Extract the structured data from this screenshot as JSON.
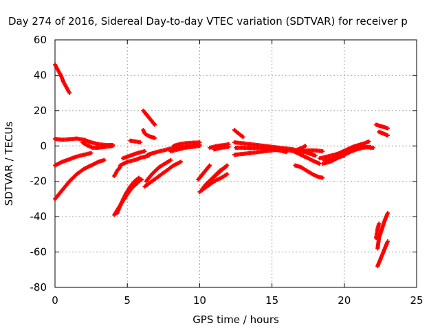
{
  "chart_data": {
    "type": "scatter",
    "title": "Day 274 of 2016, Sidereal Day-to-day VTEC variation (SDTVAR) for receiver p",
    "xlabel": "GPS time / hours",
    "ylabel": "SDTVAR / TECUs",
    "xlim": [
      0,
      25
    ],
    "ylim": [
      -80,
      60
    ],
    "xticks": [
      "0",
      "5",
      "10",
      "15",
      "20",
      "25"
    ],
    "yticks": [
      "-80",
      "-60",
      "-40",
      "-20",
      "0",
      "20",
      "40",
      "60"
    ],
    "grid": true,
    "marker": "+",
    "color": "#ff0000",
    "series": [
      {
        "points": [
          [
            0.0,
            46
          ],
          [
            0.2,
            43
          ],
          [
            0.4,
            40
          ],
          [
            0.6,
            36
          ],
          [
            0.8,
            33
          ],
          [
            1.0,
            30
          ]
        ]
      },
      {
        "points": [
          [
            0.0,
            4
          ],
          [
            0.5,
            3.5
          ],
          [
            1.0,
            3.8
          ],
          [
            1.5,
            4.2
          ],
          [
            2.0,
            3.5
          ],
          [
            2.5,
            2
          ],
          [
            3.0,
            1
          ],
          [
            3.5,
            0.5
          ],
          [
            4.0,
            0.5
          ]
        ]
      },
      {
        "points": [
          [
            0.0,
            -11
          ],
          [
            0.5,
            -9
          ],
          [
            1.0,
            -7.5
          ],
          [
            1.5,
            -6
          ],
          [
            2.0,
            -5
          ],
          [
            2.5,
            -4
          ]
        ]
      },
      {
        "points": [
          [
            0.0,
            -30
          ],
          [
            0.5,
            -25
          ],
          [
            1.0,
            -20
          ],
          [
            1.5,
            -16
          ],
          [
            2.0,
            -13
          ],
          [
            2.5,
            -11
          ],
          [
            3.0,
            -9
          ],
          [
            3.4,
            -8
          ]
        ]
      },
      {
        "points": [
          [
            1.9,
            2
          ],
          [
            2.2,
            0.5
          ],
          [
            2.6,
            -1
          ],
          [
            3.0,
            -1
          ],
          [
            3.5,
            -0.5
          ],
          [
            4.0,
            0
          ]
        ]
      },
      {
        "points": [
          [
            4.1,
            -39
          ],
          [
            4.4,
            -35
          ],
          [
            4.7,
            -31
          ],
          [
            5.0,
            -27
          ],
          [
            5.3,
            -24
          ],
          [
            5.6,
            -21
          ],
          [
            6.0,
            -19
          ]
        ]
      },
      {
        "points": [
          [
            4.3,
            -38
          ],
          [
            4.6,
            -32
          ],
          [
            4.9,
            -27
          ],
          [
            5.2,
            -23
          ],
          [
            5.5,
            -20
          ],
          [
            5.8,
            -18
          ]
        ]
      },
      {
        "points": [
          [
            4.8,
            -30
          ],
          [
            5.1,
            -26
          ],
          [
            5.4,
            -23
          ],
          [
            5.7,
            -21
          ]
        ]
      },
      {
        "points": [
          [
            4.1,
            -17
          ],
          [
            4.3,
            -14
          ],
          [
            4.5,
            -12
          ]
        ]
      },
      {
        "points": [
          [
            4.5,
            -11
          ],
          [
            5.0,
            -9
          ],
          [
            5.5,
            -8
          ],
          [
            6.0,
            -6.5
          ],
          [
            6.5,
            -5.5
          ]
        ]
      },
      {
        "points": [
          [
            4.7,
            -7
          ],
          [
            5.2,
            -5.5
          ],
          [
            5.7,
            -4
          ],
          [
            6.2,
            -3
          ]
        ]
      },
      {
        "points": [
          [
            5.2,
            3
          ],
          [
            5.6,
            2.5
          ],
          [
            5.9,
            2
          ]
        ]
      },
      {
        "points": [
          [
            6.1,
            20
          ],
          [
            6.4,
            17
          ],
          [
            6.7,
            14
          ],
          [
            6.9,
            12
          ]
        ]
      },
      {
        "points": [
          [
            6.1,
            9
          ],
          [
            6.2,
            7
          ],
          [
            6.5,
            5.5
          ],
          [
            6.9,
            4.5
          ]
        ]
      },
      {
        "points": [
          [
            6.2,
            -23
          ],
          [
            6.7,
            -20
          ],
          [
            7.2,
            -17
          ],
          [
            7.7,
            -14
          ],
          [
            8.2,
            -11
          ],
          [
            8.7,
            -9
          ]
        ]
      },
      {
        "points": [
          [
            6.3,
            -20
          ],
          [
            6.7,
            -16
          ],
          [
            7.2,
            -12
          ],
          [
            7.6,
            -10
          ],
          [
            8.0,
            -8
          ]
        ]
      },
      {
        "points": [
          [
            6.4,
            -5
          ],
          [
            7.0,
            -3.5
          ],
          [
            7.5,
            -2.5
          ],
          [
            8.0,
            -1.5
          ],
          [
            8.5,
            -1
          ],
          [
            9.0,
            -0.5
          ],
          [
            9.5,
            0
          ],
          [
            10.0,
            0.5
          ]
        ]
      },
      {
        "points": [
          [
            8.2,
            0
          ],
          [
            8.6,
            1
          ],
          [
            9.0,
            1.5
          ],
          [
            9.5,
            1.8
          ],
          [
            10.0,
            2
          ]
        ]
      },
      {
        "points": [
          [
            8.0,
            -3
          ],
          [
            8.5,
            -2
          ],
          [
            9.0,
            -1
          ],
          [
            9.5,
            -0.5
          ],
          [
            10.0,
            0
          ]
        ]
      },
      {
        "points": [
          [
            9.9,
            -19
          ],
          [
            10.2,
            -16
          ],
          [
            10.5,
            -13
          ],
          [
            10.7,
            -11
          ]
        ]
      },
      {
        "points": [
          [
            10.0,
            -26
          ],
          [
            10.5,
            -23
          ],
          [
            11.0,
            -20
          ],
          [
            11.5,
            -18
          ],
          [
            11.9,
            -16
          ]
        ]
      },
      {
        "points": [
          [
            10.2,
            -24
          ],
          [
            10.7,
            -20
          ],
          [
            11.2,
            -16
          ],
          [
            11.6,
            -13
          ],
          [
            11.9,
            -11
          ]
        ]
      },
      {
        "points": [
          [
            10.4,
            -22
          ],
          [
            10.9,
            -18
          ],
          [
            11.4,
            -14
          ],
          [
            11.8,
            -12
          ]
        ]
      },
      {
        "points": [
          [
            10.7,
            -1
          ],
          [
            11.2,
            0
          ],
          [
            11.7,
            0.5
          ],
          [
            12.0,
            1
          ]
        ]
      },
      {
        "points": [
          [
            11.0,
            -2
          ],
          [
            11.5,
            -1
          ],
          [
            12.0,
            -0.5
          ]
        ]
      },
      {
        "points": [
          [
            12.4,
            9
          ],
          [
            12.7,
            7
          ],
          [
            13.0,
            5
          ]
        ]
      },
      {
        "points": [
          [
            12.4,
            2
          ],
          [
            13.0,
            1.5
          ],
          [
            13.5,
            1
          ],
          [
            14.0,
            0.5
          ],
          [
            14.5,
            0
          ],
          [
            15.0,
            -0.5
          ],
          [
            15.5,
            -1
          ],
          [
            16.0,
            -1.5
          ],
          [
            16.5,
            -2
          ],
          [
            17.0,
            -3
          ],
          [
            17.5,
            -4
          ],
          [
            18.0,
            -5.5
          ]
        ]
      },
      {
        "points": [
          [
            12.4,
            -5
          ],
          [
            13.0,
            -4.5
          ],
          [
            13.5,
            -4
          ],
          [
            14.0,
            -3.5
          ],
          [
            14.5,
            -3
          ],
          [
            15.0,
            -2.5
          ],
          [
            15.5,
            -2
          ],
          [
            16.0,
            -2
          ],
          [
            16.5,
            -3
          ],
          [
            17.0,
            -5
          ],
          [
            17.5,
            -7
          ],
          [
            18.0,
            -9
          ],
          [
            18.3,
            -10
          ]
        ]
      },
      {
        "points": [
          [
            12.5,
            -1
          ],
          [
            13.0,
            -1
          ],
          [
            13.5,
            -1.2
          ],
          [
            14.0,
            -1
          ],
          [
            14.5,
            -1.5
          ],
          [
            15.0,
            -2
          ],
          [
            15.5,
            -2.5
          ],
          [
            16.0,
            -3.5
          ]
        ]
      },
      {
        "points": [
          [
            16.5,
            -3
          ],
          [
            16.8,
            -2
          ],
          [
            17.1,
            -1
          ],
          [
            17.3,
            0
          ]
        ]
      },
      {
        "points": [
          [
            16.6,
            -11
          ],
          [
            17.0,
            -12
          ],
          [
            17.4,
            -14
          ],
          [
            17.8,
            -16
          ],
          [
            18.2,
            -17.5
          ],
          [
            18.5,
            -18
          ]
        ]
      },
      {
        "points": [
          [
            17.0,
            -3
          ],
          [
            17.5,
            -2.5
          ],
          [
            18.0,
            -2.5
          ],
          [
            18.5,
            -3
          ]
        ]
      },
      {
        "points": [
          [
            18.3,
            -7
          ],
          [
            18.8,
            -6
          ],
          [
            19.3,
            -5
          ],
          [
            19.8,
            -4
          ],
          [
            20.3,
            -3
          ],
          [
            20.8,
            -2
          ],
          [
            21.3,
            -1
          ],
          [
            21.8,
            -0.5
          ]
        ]
      },
      {
        "points": [
          [
            18.5,
            -10
          ],
          [
            19.0,
            -9
          ],
          [
            19.5,
            -7
          ],
          [
            20.0,
            -5
          ],
          [
            20.5,
            -3
          ],
          [
            21.0,
            -1.5
          ],
          [
            21.3,
            0
          ]
        ]
      },
      {
        "points": [
          [
            18.6,
            -8
          ],
          [
            19.0,
            -7.5
          ],
          [
            19.5,
            -6.5
          ],
          [
            20.0,
            -5.5
          ]
        ]
      },
      {
        "points": [
          [
            19.4,
            -5
          ],
          [
            19.8,
            -3.5
          ],
          [
            20.2,
            -2
          ],
          [
            20.6,
            -0.5
          ],
          [
            21.0,
            0.5
          ],
          [
            21.4,
            1.5
          ],
          [
            21.7,
            2.5
          ]
        ]
      },
      {
        "points": [
          [
            21.0,
            -0.5
          ],
          [
            21.4,
            -0.5
          ],
          [
            21.8,
            -1
          ],
          [
            22.0,
            -1
          ]
        ]
      },
      {
        "points": [
          [
            22.2,
            12
          ],
          [
            22.6,
            11
          ],
          [
            23.0,
            10
          ]
        ]
      },
      {
        "points": [
          [
            22.4,
            8
          ],
          [
            22.7,
            7
          ],
          [
            23.0,
            6
          ]
        ]
      },
      {
        "points": [
          [
            22.3,
            -68
          ],
          [
            22.5,
            -64
          ],
          [
            22.7,
            -60
          ],
          [
            22.9,
            -56
          ],
          [
            23.0,
            -54
          ]
        ]
      },
      {
        "points": [
          [
            22.3,
            -58
          ],
          [
            22.4,
            -52
          ],
          [
            22.6,
            -47
          ],
          [
            22.8,
            -42
          ],
          [
            23.0,
            -38
          ]
        ]
      },
      {
        "points": [
          [
            22.2,
            -52
          ],
          [
            22.3,
            -47
          ],
          [
            22.4,
            -44
          ]
        ]
      }
    ]
  }
}
